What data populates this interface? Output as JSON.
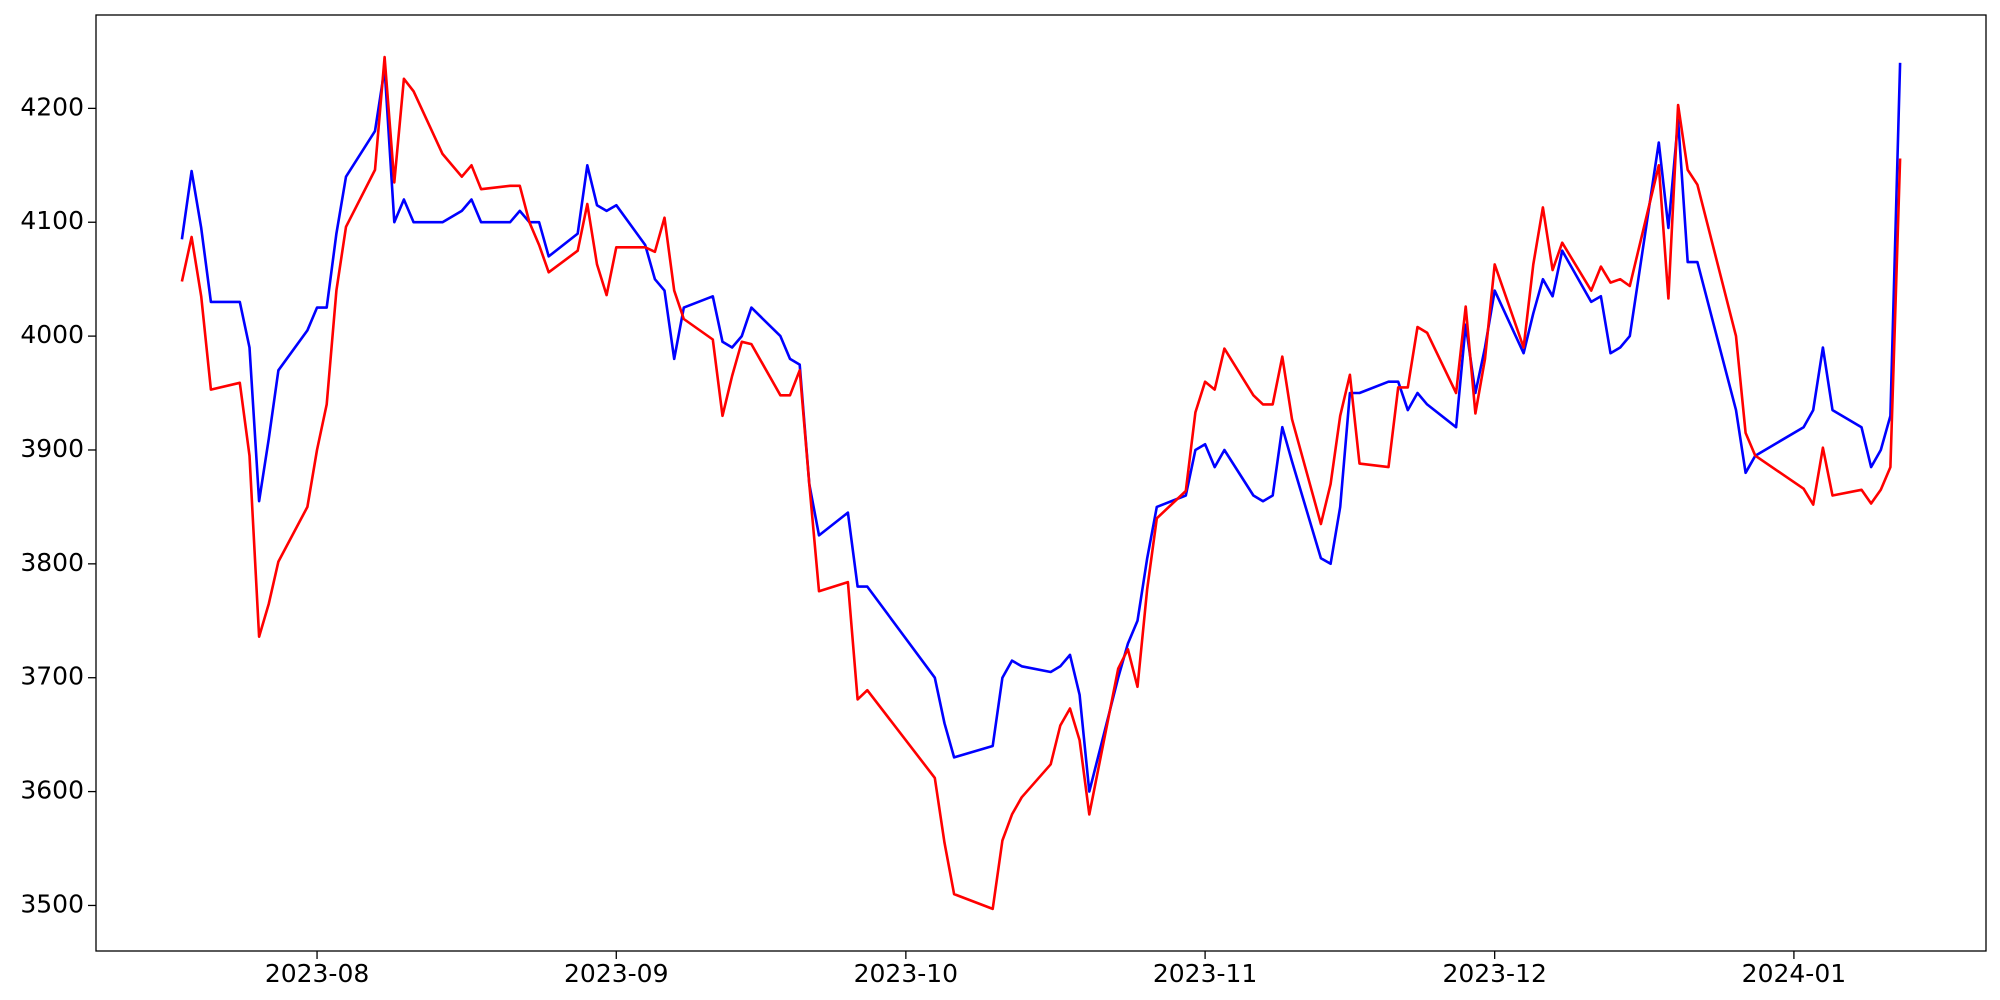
{
  "chart_data": {
    "type": "line",
    "x": [
      19556,
      19557,
      19558,
      19559,
      19562,
      19563,
      19564,
      19565,
      19566,
      19569,
      19570,
      19571,
      19572,
      19573,
      19576,
      19577,
      19578,
      19579,
      19580,
      19583,
      19585,
      19586,
      19587,
      19590,
      19591,
      19592,
      19593,
      19594,
      19597,
      19598,
      19599,
      19600,
      19601,
      19604,
      19605,
      19606,
      19607,
      19608,
      19611,
      19612,
      19613,
      19614,
      19615,
      19618,
      19619,
      19620,
      19621,
      19622,
      19625,
      19626,
      19627,
      19634,
      19635,
      19636,
      19640,
      19641,
      19642,
      19643,
      19646,
      19647,
      19648,
      19649,
      19650,
      19653,
      19654,
      19655,
      19656,
      19657,
      19660,
      19661,
      19662,
      19663,
      19664,
      19667,
      19668,
      19669,
      19670,
      19671,
      19674,
      19675,
      19676,
      19677,
      19678,
      19681,
      19682,
      19683,
      19684,
      19685,
      19688,
      19689,
      19690,
      19691,
      19692,
      19695,
      19696,
      19697,
      19698,
      19699,
      19702,
      19703,
      19704,
      19705,
      19706,
      19709,
      19710,
      19711,
      19712,
      19713,
      19717,
      19718,
      19719,
      19724,
      19725,
      19726,
      19727,
      19730,
      19731,
      19732,
      19733,
      19734
    ],
    "series": [
      {
        "color": "#0000ff",
        "values": [
          4085,
          4145,
          4095,
          4030,
          4030,
          3990,
          3855,
          3910,
          3970,
          4005,
          4025,
          4025,
          4090,
          4140,
          4180,
          4235,
          4100,
          4120,
          4100,
          4100,
          4110,
          4120,
          4100,
          4100,
          4110,
          4100,
          4100,
          4070,
          4090,
          4150,
          4115,
          4110,
          4115,
          4080,
          4050,
          4040,
          3980,
          4025,
          4035,
          3995,
          3990,
          4000,
          4025,
          4000,
          3980,
          3975,
          3870,
          3825,
          3845,
          3780,
          3780,
          3700,
          3660,
          3630,
          3640,
          3700,
          3715,
          3710,
          3705,
          3710,
          3720,
          3685,
          3600,
          3700,
          3730,
          3750,
          3805,
          3850,
          3860,
          3900,
          3905,
          3885,
          3900,
          3860,
          3855,
          3860,
          3920,
          3890,
          3805,
          3800,
          3850,
          3950,
          3950,
          3960,
          3960,
          3935,
          3950,
          3940,
          3920,
          4010,
          3950,
          3990,
          4040,
          3985,
          4020,
          4050,
          4035,
          4075,
          4030,
          4035,
          3985,
          3990,
          4000,
          4170,
          4095,
          4190,
          4065,
          4065,
          3935,
          3880,
          3895,
          3920,
          3935,
          3990,
          3935,
          3920,
          3885,
          3900,
          3930,
          4240
        ]
      },
      {
        "color": "#ff0000",
        "values": [
          4048,
          4087,
          4035,
          3953,
          3959,
          3895,
          3736,
          3765,
          3802,
          3850,
          3900,
          3940,
          4040,
          4096,
          4146,
          4245,
          4135,
          4226,
          4215,
          4160,
          4140,
          4150,
          4129,
          4132,
          4132,
          4100,
          4080,
          4056,
          4075,
          4116,
          4063,
          4036,
          4078,
          4078,
          4074,
          4104,
          4040,
          4015,
          3997,
          3930,
          3965,
          3995,
          3993,
          3948,
          3948,
          3970,
          3870,
          3776,
          3784,
          3681,
          3689,
          3612,
          3555,
          3510,
          3497,
          3557,
          3580,
          3595,
          3624,
          3658,
          3673,
          3645,
          3580,
          3708,
          3725,
          3692,
          3778,
          3840,
          3864,
          3933,
          3960,
          3953,
          3989,
          3948,
          3940,
          3940,
          3982,
          3927,
          3835,
          3870,
          3930,
          3966,
          3888,
          3885,
          3955,
          3955,
          4008,
          4003,
          3950,
          4026,
          3932,
          3980,
          4063,
          3990,
          4063,
          4113,
          4058,
          4082,
          4040,
          4061,
          4047,
          4050,
          4044,
          4150,
          4033,
          4203,
          4146,
          4133,
          4000,
          3915,
          3895,
          3866,
          3852,
          3902,
          3860,
          3865,
          3853,
          3865,
          3885,
          4156
        ]
      }
    ],
    "xlim": [
      19547.1,
      19742.9
    ],
    "xticks": [
      {
        "value": 19570,
        "label": "2023-08"
      },
      {
        "value": 19601,
        "label": "2023-09"
      },
      {
        "value": 19631,
        "label": "2023-10"
      },
      {
        "value": 19662,
        "label": "2023-11"
      },
      {
        "value": 19692,
        "label": "2023-12"
      },
      {
        "value": 19723,
        "label": "2024-01"
      }
    ],
    "ylim": [
      3460,
      4282
    ],
    "yticks": [
      3500,
      3600,
      3700,
      3800,
      3900,
      4000,
      4100,
      4200
    ]
  }
}
